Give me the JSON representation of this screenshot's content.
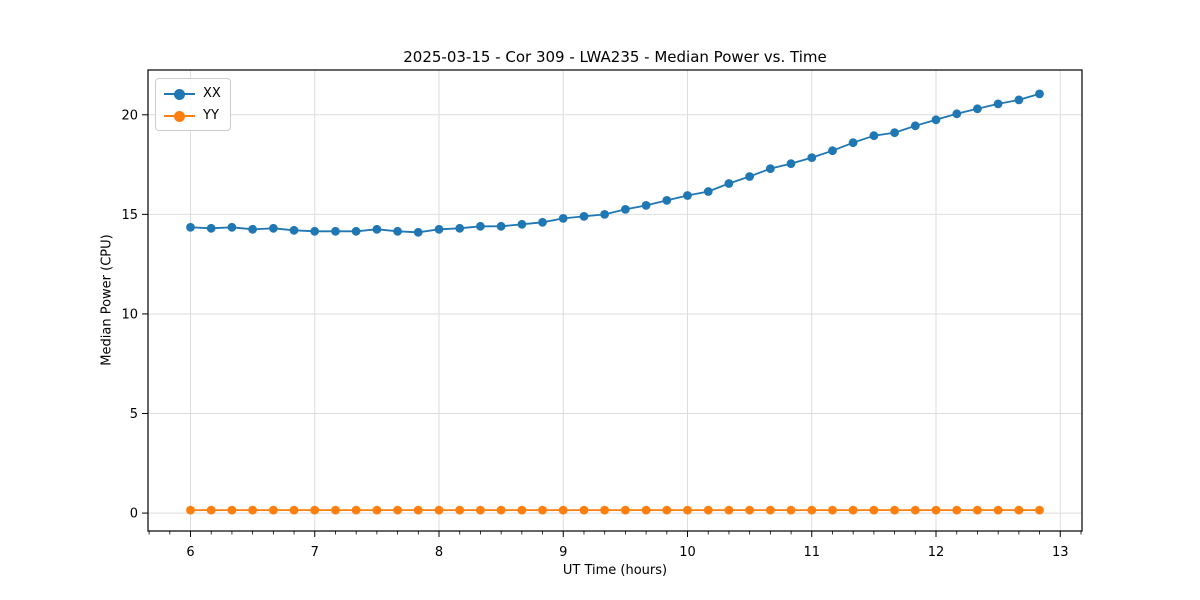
{
  "style": {
    "background": "#ffffff",
    "grid_color": "#dedede",
    "spine_color": "#000000",
    "tick_color": "#000000"
  },
  "chart_data": {
    "type": "line",
    "title": "2025-03-15 - Cor 309 - LWA235 - Median Power vs. Time",
    "xlabel": "UT Time (hours)",
    "ylabel": "Median Power (CPU)",
    "xlim": [
      5.658,
      13.175
    ],
    "ylim": [
      -0.9,
      22.25
    ],
    "x_ticks": [
      6,
      7,
      8,
      9,
      10,
      11,
      12,
      13
    ],
    "y_ticks": [
      0,
      5,
      10,
      15,
      20
    ],
    "x_minor_step": 0.16667,
    "grid": true,
    "legend_position": "upper left",
    "marker": "circle",
    "x": [
      6.0,
      6.167,
      6.333,
      6.5,
      6.667,
      6.833,
      7.0,
      7.167,
      7.333,
      7.5,
      7.667,
      7.833,
      8.0,
      8.167,
      8.333,
      8.5,
      8.667,
      8.833,
      9.0,
      9.167,
      9.333,
      9.5,
      9.667,
      9.833,
      10.0,
      10.167,
      10.333,
      10.5,
      10.667,
      10.833,
      11.0,
      11.167,
      11.333,
      11.5,
      11.667,
      11.833,
      12.0,
      12.167,
      12.333,
      12.5,
      12.667,
      12.833
    ],
    "series": [
      {
        "name": "XX",
        "color": "#1f77b4",
        "values": [
          14.35,
          14.3,
          14.35,
          14.25,
          14.3,
          14.2,
          14.15,
          14.15,
          14.15,
          14.25,
          14.15,
          14.1,
          14.25,
          14.3,
          14.4,
          14.4,
          14.5,
          14.6,
          14.8,
          14.9,
          15.0,
          15.25,
          15.45,
          15.7,
          15.95,
          16.15,
          16.55,
          16.9,
          17.3,
          17.55,
          17.85,
          18.2,
          18.6,
          18.95,
          19.1,
          19.45,
          19.75,
          20.05,
          20.3,
          20.55,
          20.75,
          21.05
        ]
      },
      {
        "name": "YY",
        "color": "#ff7f0e",
        "values": [
          0.15,
          0.15,
          0.15,
          0.15,
          0.15,
          0.15,
          0.15,
          0.15,
          0.15,
          0.15,
          0.15,
          0.15,
          0.15,
          0.15,
          0.15,
          0.15,
          0.15,
          0.15,
          0.15,
          0.15,
          0.15,
          0.15,
          0.15,
          0.15,
          0.15,
          0.15,
          0.15,
          0.15,
          0.15,
          0.15,
          0.15,
          0.15,
          0.15,
          0.15,
          0.15,
          0.15,
          0.15,
          0.15,
          0.15,
          0.15,
          0.15,
          0.15
        ]
      }
    ]
  }
}
